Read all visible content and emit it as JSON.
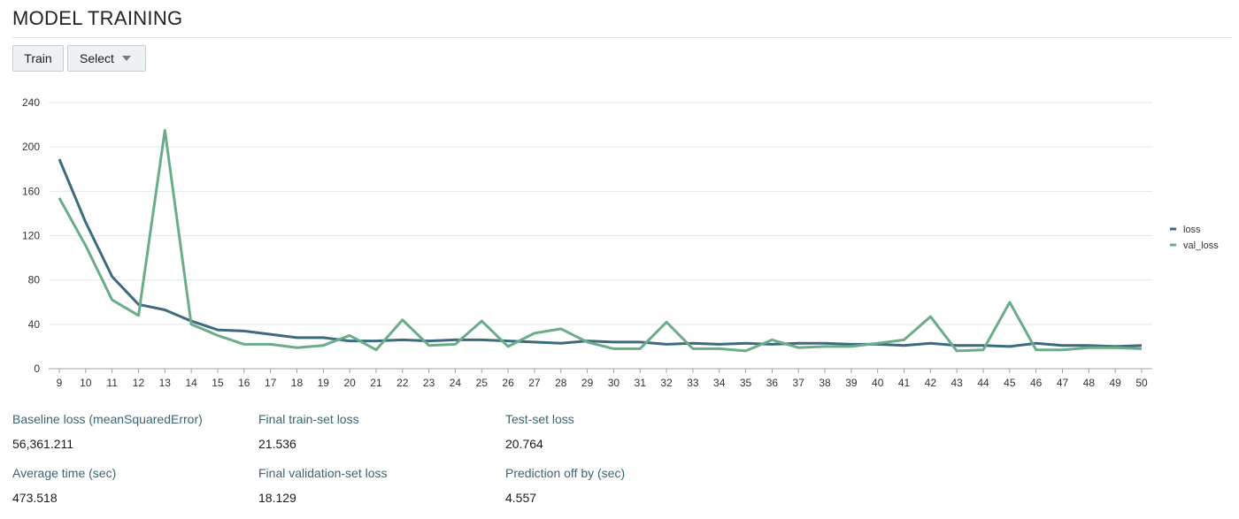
{
  "page": {
    "title": "MODEL TRAINING"
  },
  "toolbar": {
    "train_label": "Train",
    "select_label": "Select",
    "select_icon": "caret-down-icon"
  },
  "colors": {
    "loss": "#3d6b7d",
    "val_loss": "#6aac8a",
    "grid": "#e4e8ea",
    "axis": "#9aa3a7"
  },
  "chart_data": {
    "type": "line",
    "title": "",
    "xlabel": "",
    "ylabel": "",
    "x": [
      9,
      10,
      11,
      12,
      13,
      14,
      15,
      16,
      17,
      18,
      19,
      20,
      21,
      22,
      23,
      24,
      25,
      26,
      27,
      28,
      29,
      30,
      31,
      32,
      33,
      34,
      35,
      36,
      37,
      38,
      39,
      40,
      41,
      42,
      43,
      44,
      45,
      46,
      47,
      48,
      49,
      50
    ],
    "ylim": [
      0,
      240
    ],
    "yticks": [
      0,
      40,
      80,
      120,
      160,
      200,
      240
    ],
    "grid": true,
    "legend_position": "right",
    "series": [
      {
        "name": "loss",
        "values": [
          189,
          132,
          83,
          58,
          53,
          43,
          35,
          34,
          31,
          28,
          28,
          25,
          25,
          26,
          25,
          26,
          26,
          25,
          24,
          23,
          25,
          24,
          24,
          22,
          23,
          22,
          23,
          22,
          23,
          23,
          22,
          22,
          21,
          23,
          21,
          21,
          20,
          23,
          21,
          21,
          20,
          21
        ]
      },
      {
        "name": "val_loss",
        "values": [
          154,
          111,
          62,
          48,
          215,
          40,
          30,
          22,
          22,
          19,
          21,
          30,
          17,
          44,
          21,
          22,
          43,
          20,
          32,
          36,
          24,
          18,
          18,
          42,
          18,
          18,
          16,
          26,
          19,
          20,
          20,
          23,
          26,
          47,
          16,
          17,
          60,
          17,
          17,
          19,
          19,
          18
        ]
      }
    ]
  },
  "stats": [
    {
      "label": "Baseline loss (meanSquaredError)",
      "value": "56,361.211"
    },
    {
      "label": "Final train-set loss",
      "value": "21.536"
    },
    {
      "label": "Test-set loss",
      "value": "20.764"
    },
    {
      "label": "Average time (sec)",
      "value": "473.518"
    },
    {
      "label": "Final validation-set loss",
      "value": "18.129"
    },
    {
      "label": "Prediction off by (sec)",
      "value": "4.557"
    }
  ]
}
